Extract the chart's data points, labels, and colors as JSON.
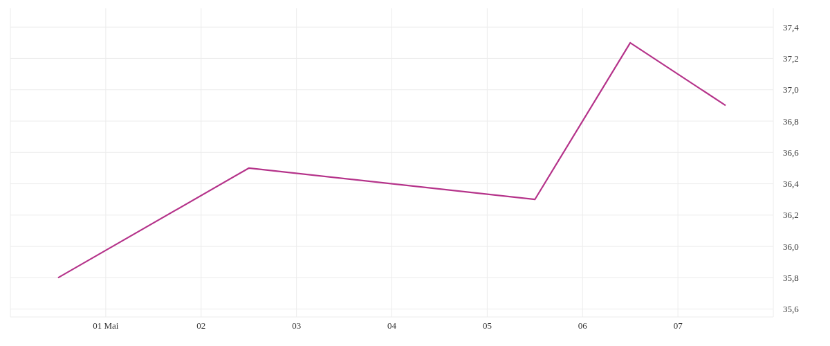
{
  "chart_data": {
    "type": "line",
    "x": [
      0.5,
      2.5,
      5.5,
      6.5,
      7.5
    ],
    "series": [
      {
        "color": "#b5338a",
        "values": [
          35.8,
          36.5,
          36.3,
          37.3,
          36.9
        ]
      }
    ],
    "xlim": [
      0,
      8
    ],
    "xticks": [
      {
        "value": 0,
        "label": null
      },
      {
        "value": 1,
        "label": "01 Mai"
      },
      {
        "value": 2,
        "label": "02"
      },
      {
        "value": 3,
        "label": "03"
      },
      {
        "value": 4,
        "label": "04"
      },
      {
        "value": 5,
        "label": "05"
      },
      {
        "value": 6,
        "label": "06"
      },
      {
        "value": 7,
        "label": "07"
      },
      {
        "value": 8,
        "label": null
      }
    ],
    "ylim": [
      35.55,
      37.52
    ],
    "yticks": [
      {
        "value": 35.6,
        "label": "35,6"
      },
      {
        "value": 35.8,
        "label": "35,8"
      },
      {
        "value": 36.0,
        "label": "36,0"
      },
      {
        "value": 36.2,
        "label": "36,2"
      },
      {
        "value": 36.4,
        "label": "36,4"
      },
      {
        "value": 36.6,
        "label": "36,6"
      },
      {
        "value": 36.8,
        "label": "36,8"
      },
      {
        "value": 37.0,
        "label": "37,0"
      },
      {
        "value": 37.2,
        "label": "37,2"
      },
      {
        "value": 37.4,
        "label": "37,4"
      }
    ],
    "grid": true,
    "marker": "none",
    "line_style": "solid"
  }
}
